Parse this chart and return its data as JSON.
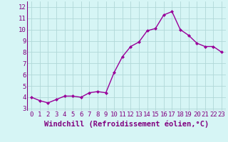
{
  "x": [
    0,
    1,
    2,
    3,
    4,
    5,
    6,
    7,
    8,
    9,
    10,
    11,
    12,
    13,
    14,
    15,
    16,
    17,
    18,
    19,
    20,
    21,
    22,
    23
  ],
  "y": [
    4.0,
    3.7,
    3.5,
    3.8,
    4.1,
    4.1,
    4.0,
    4.4,
    4.5,
    4.4,
    6.2,
    7.6,
    8.5,
    8.9,
    9.9,
    10.1,
    11.3,
    11.6,
    10.0,
    9.5,
    8.8,
    8.5,
    8.5,
    8.0
  ],
  "line_color": "#990099",
  "marker": "D",
  "marker_size": 2.0,
  "xlabel": "Windchill (Refroidissement éolien,°C)",
  "xlim": [
    -0.5,
    23.5
  ],
  "ylim": [
    2.8,
    12.5
  ],
  "yticks": [
    3,
    4,
    5,
    6,
    7,
    8,
    9,
    10,
    11,
    12
  ],
  "xticks": [
    0,
    1,
    2,
    3,
    4,
    5,
    6,
    7,
    8,
    9,
    10,
    11,
    12,
    13,
    14,
    15,
    16,
    17,
    18,
    19,
    20,
    21,
    22,
    23
  ],
  "bg_color": "#d6f5f5",
  "grid_color": "#b0d8d8",
  "tick_label_fontsize": 6.5,
  "xlabel_fontsize": 7.5,
  "label_color": "#800080",
  "line_width": 1.0
}
